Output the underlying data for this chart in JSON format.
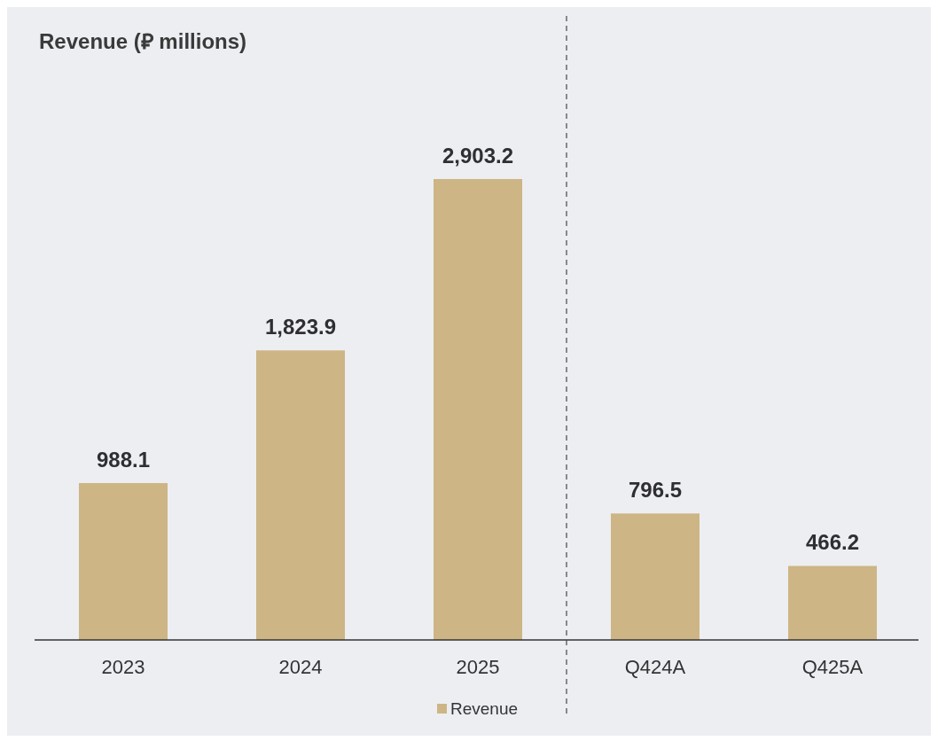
{
  "chart_data": {
    "type": "bar",
    "title": "Revenue (⃁ millions)",
    "categories": [
      "2023",
      "2024",
      "2025",
      "Q424A",
      "Q425A"
    ],
    "series": [
      {
        "name": "Revenue",
        "color": "#cdb585",
        "values": [
          988.1,
          1823.9,
          2903.2,
          796.5,
          466.2
        ],
        "value_labels": [
          "988.1",
          "1,823.9",
          "2,903.2",
          "796.5",
          "466.2"
        ]
      }
    ],
    "legend": "bottom"
  }
}
